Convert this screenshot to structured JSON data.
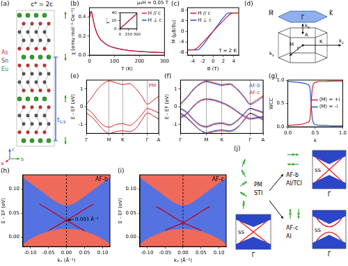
{
  "diagrams": {
    "crystal": {
      "panel_label": "(a)",
      "title": "c* = 2c",
      "atoms": [
        {
          "text": "As",
          "color": "#d62728"
        },
        {
          "text": "Sn",
          "color": "#555555"
        },
        {
          "text": "Eu",
          "color": "#2ca02c"
        }
      ],
      "spacing_label": {
        "text": "t",
        "sub": "1/2"
      },
      "axes": [
        "a",
        "b",
        "c"
      ]
    },
    "brillouin_zone": {
      "panel_label": "(d)",
      "surface_points": [
        "M̄",
        "Γ̄",
        "K̄"
      ],
      "bulk_points": [
        "A",
        "Γ",
        "M",
        "K"
      ],
      "axes": [
        {
          "text": "k",
          "sub": "z"
        },
        {
          "text": "k",
          "sub": "x"
        },
        {
          "text": "k",
          "sub": "y"
        }
      ]
    },
    "phase_scheme": {
      "panel_label": "(j)",
      "start": {
        "phase": "PM",
        "topology": "STI"
      },
      "branches": [
        {
          "phase": "AF-b",
          "topology": "AI/TCI"
        },
        {
          "phase": "AF-c",
          "topology": "AI"
        }
      ],
      "state_label": "SS",
      "point_label": "Γ̄"
    }
  },
  "chart_data": [
    {
      "panel_label": "(b)",
      "type": "line",
      "x_label": "T (K)",
      "y_label": "χ (emu·mol⁻¹·Oe⁻¹)",
      "annotation": "μ₀H = 0.05 T",
      "legend": "upper right",
      "xlim": [
        0,
        300
      ],
      "xticks": [
        0,
        100,
        200,
        300
      ],
      "ylim": [
        0,
        0.5
      ],
      "yticks": [
        {
          "value": 0,
          "label": "0.0"
        },
        0.2,
        0.4
      ],
      "x": [
        2,
        5,
        8,
        10,
        15,
        20,
        30,
        40,
        50,
        75,
        100,
        150,
        200,
        250,
        300
      ],
      "series": [
        {
          "name": "H // c",
          "color": "#e41a1c",
          "values": [
            0.4,
            0.44,
            0.45,
            0.44,
            0.37,
            0.31,
            0.23,
            0.18,
            0.15,
            0.1,
            0.078,
            0.052,
            0.039,
            0.031,
            0.026
          ]
        },
        {
          "name": "H ⊥ c",
          "color": "#1f4fd8",
          "values": [
            0.44,
            0.46,
            0.46,
            0.44,
            0.37,
            0.31,
            0.23,
            0.18,
            0.15,
            0.1,
            0.078,
            0.052,
            0.039,
            0.031,
            0.026
          ]
        }
      ],
      "inset": {
        "type": "line",
        "y_label": "χ⁻¹",
        "xlim": [
          0,
          300
        ],
        "xticks": [
          0,
          150,
          300
        ],
        "ylim": [
          0,
          40
        ],
        "yticks": [
          0,
          20,
          40
        ],
        "x": [
          5,
          50,
          100,
          150,
          200,
          250,
          300
        ],
        "series": [
          {
            "color": "#e41a1c",
            "values": [
              1.5,
              6.8,
              13,
              19.5,
              25.8,
              32,
              38.5
            ]
          },
          {
            "color": "#1f4fd8",
            "values": [
              1.4,
              6.6,
              12.8,
              19.2,
              25.5,
              31.8,
              38.2
            ]
          }
        ]
      }
    },
    {
      "panel_label": "(c)",
      "type": "line",
      "x_label": "B (T)",
      "y_label": "M (μB/Eu)",
      "annotation": "T = 2 K",
      "legend": "upper left",
      "xlim": [
        -5,
        5
      ],
      "xticks": [
        -4,
        -2,
        0,
        2,
        4
      ],
      "ylim": [
        -9,
        9
      ],
      "yticks": [
        -8,
        -4,
        0,
        4,
        8
      ],
      "x": [
        -5,
        -4,
        -3.5,
        -3,
        -2,
        -1,
        0,
        1,
        2,
        3,
        3.5,
        4,
        5
      ],
      "series": [
        {
          "name": "H // c",
          "color": "#e41a1c",
          "values": [
            -7,
            -7,
            -6.8,
            -6.1,
            -4.1,
            -2.1,
            0,
            2.1,
            4.1,
            6.1,
            6.8,
            7,
            7
          ]
        },
        {
          "name": "H ⊥ c",
          "color": "#1f4fd8",
          "values": [
            -7,
            -7,
            -7,
            -7,
            -5.2,
            -2.6,
            0,
            2.6,
            5.2,
            7,
            7,
            7,
            7
          ]
        }
      ]
    },
    {
      "panel_label": "(e)",
      "type": "band_structure",
      "y_label": "E - EF (eV)",
      "legend": "upper right",
      "grid": true,
      "xlim": [
        0,
        3.2
      ],
      "xticks": [
        {
          "value": 0,
          "label": "Γ"
        },
        {
          "value": 1,
          "label": "M"
        },
        {
          "value": 1.6,
          "label": "K"
        },
        {
          "value": 2.7,
          "label": "Γ"
        },
        {
          "value": 3.2,
          "label": "A"
        }
      ],
      "ylim": [
        -1.5,
        1.5
      ],
      "yticks": [
        -1,
        0,
        1
      ],
      "x": [
        0,
        0.25,
        0.5,
        0.75,
        1,
        1.3,
        1.6,
        1.9,
        2.2,
        2.45,
        2.7,
        2.95,
        3.2
      ],
      "series": [
        {
          "name": "PM",
          "color": "#d7191c",
          "bands": [
            [
              0.15,
              0.55,
              1.0,
              1.3,
              1.45,
              1.35,
              1.25,
              1.3,
              1.0,
              0.6,
              0.15,
              0.35,
              0.6
            ],
            [
              -0.1,
              -0.35,
              -0.75,
              -1.05,
              -1.15,
              -1.0,
              -0.95,
              -1.05,
              -0.8,
              -0.45,
              -0.1,
              -0.2,
              -0.35
            ],
            [
              -0.35,
              -0.6,
              -0.95,
              -1.3,
              -1.5,
              -1.4,
              -1.35,
              -1.4,
              -1.2,
              -0.75,
              -0.35,
              -0.5,
              -0.7
            ]
          ]
        }
      ]
    },
    {
      "panel_label": "(f)",
      "type": "band_structure",
      "y_label": "E - EF (eV)",
      "legend": "upper right",
      "grid": true,
      "xlim": [
        0,
        3.2
      ],
      "xticks": [
        {
          "value": 0,
          "label": "Γ"
        },
        {
          "value": 1,
          "label": "M"
        },
        {
          "value": 1.6,
          "label": "K"
        },
        {
          "value": 2.7,
          "label": "Γ"
        },
        {
          "value": 3.2,
          "label": "A"
        }
      ],
      "ylim": [
        -1.5,
        1.5
      ],
      "yticks": [
        -1,
        0,
        1
      ],
      "x": [
        0,
        0.25,
        0.5,
        0.75,
        1,
        1.3,
        1.6,
        1.9,
        2.2,
        2.45,
        2.7,
        2.95,
        3.2
      ],
      "series": [
        {
          "name": "AF-b",
          "color": "#1f4fd8",
          "bands": [
            [
              0.12,
              0.5,
              0.95,
              1.25,
              1.4,
              1.3,
              1.2,
              1.25,
              0.95,
              0.55,
              0.12,
              0.3,
              0.55
            ],
            [
              -0.08,
              -0.3,
              -0.7,
              -1.0,
              -1.1,
              -0.95,
              -0.9,
              -1.0,
              -0.75,
              -0.4,
              -0.08,
              -0.18,
              -0.3
            ],
            [
              -0.4,
              -0.65,
              -1.0,
              -1.3,
              -1.45,
              -1.35,
              -1.3,
              -1.35,
              -1.15,
              -0.8,
              -0.4,
              -0.55,
              -0.75
            ],
            [
              -0.6,
              -0.35,
              0.05,
              0.35,
              0.45,
              0.4,
              0.25,
              0.05,
              -0.25,
              -0.5,
              -0.65,
              -0.6,
              -0.55
            ]
          ]
        },
        {
          "name": "AF-c",
          "color": "#d7191c",
          "bands": [
            [
              0.18,
              0.55,
              1.0,
              1.3,
              1.45,
              1.35,
              1.25,
              1.3,
              1.0,
              0.6,
              0.18,
              0.38,
              0.62
            ],
            [
              -0.12,
              -0.35,
              -0.75,
              -1.05,
              -1.15,
              -1.0,
              -0.95,
              -1.05,
              -0.8,
              -0.45,
              -0.12,
              -0.22,
              -0.35
            ],
            [
              -0.35,
              -0.6,
              -0.95,
              -1.3,
              -1.5,
              -1.4,
              -1.35,
              -1.4,
              -1.2,
              -0.75,
              -0.35,
              -0.5,
              -0.7
            ],
            [
              -0.65,
              -0.4,
              0.0,
              0.3,
              0.4,
              0.35,
              0.2,
              0.0,
              -0.3,
              -0.55,
              -0.7,
              -0.65,
              -0.6
            ]
          ]
        }
      ]
    },
    {
      "panel_label": "(g)",
      "type": "line",
      "x_label": "k",
      "y_label": "WCC",
      "legend": "center right",
      "xlim": [
        0,
        1
      ],
      "xticks": [
        {
          "value": 0,
          "label": "0.0"
        },
        0.5,
        {
          "value": 1,
          "label": "1.0"
        }
      ],
      "ylim": [
        0,
        1
      ],
      "yticks": [
        {
          "value": 0,
          "label": "0.0"
        },
        0.5,
        {
          "value": 1,
          "label": "1.0"
        }
      ],
      "x": [
        0,
        0.1,
        0.2,
        0.3,
        0.35,
        0.4,
        0.45,
        0.5,
        0.6,
        0.7,
        0.8,
        0.9,
        1
      ],
      "series": [
        {
          "name": "⟨M⟩ = +i",
          "color": "#e41a1c",
          "values": [
            0.03,
            0.04,
            0.05,
            0.07,
            0.09,
            0.15,
            0.85,
            0.95,
            0.97,
            0.97,
            0.98,
            0.98,
            0.98
          ]
        },
        {
          "name": "⟨M⟩ = -i",
          "color": "#1f4fd8",
          "values": [
            0.97,
            0.96,
            0.95,
            0.93,
            0.91,
            0.85,
            0.15,
            0.05,
            0.03,
            0.03,
            0.02,
            0.02,
            0.02
          ]
        }
      ]
    },
    {
      "panel_label": "(h)",
      "type": "surface_spectrum",
      "title": "AF-b",
      "x_label": "kₓ (Å⁻¹)",
      "y_label": "E - EF (eV)",
      "annotation": "0.003 Å⁻¹",
      "vline": 0,
      "xlim": [
        -0.12,
        0.12
      ],
      "xticks": [
        {
          "value": -0.1,
          "label": "-0.10"
        },
        {
          "value": -0.05,
          "label": "-0.05"
        },
        {
          "value": 0,
          "label": "0.00"
        },
        {
          "value": 0.05,
          "label": "0.05"
        },
        {
          "value": 0.1,
          "label": "0.10"
        }
      ],
      "ylim": [
        -0.02,
        0.13
      ],
      "yticks": [
        {
          "value": 0,
          "label": "0.00"
        },
        {
          "value": 0.05,
          "label": "0.05"
        },
        {
          "value": 0.1,
          "label": "0.10"
        }
      ],
      "x": [
        -0.12,
        -0.1,
        -0.075,
        -0.05,
        -0.025,
        0,
        0.025,
        0.05,
        0.075,
        0.1,
        0.12
      ],
      "series": [
        {
          "type": "area_above",
          "color": "#ef6a5a",
          "values": [
            0.125,
            0.113,
            0.099,
            0.085,
            0.072,
            0.066,
            0.072,
            0.085,
            0.099,
            0.113,
            0.125
          ]
        },
        {
          "type": "area_below",
          "color": "#ef6a5a",
          "values": [
            -0.015,
            -0.004,
            0.005,
            0.012,
            0.016,
            0.017,
            0.016,
            0.012,
            0.005,
            -0.004,
            -0.015
          ]
        },
        {
          "type": "line",
          "color": "#c4001c",
          "values": [
            null,
            null,
            null,
            0.013,
            0.024,
            0.035,
            0.046,
            0.058,
            0.069,
            null,
            null
          ]
        },
        {
          "type": "line",
          "color": "#c4001c",
          "values": [
            null,
            null,
            0.069,
            0.058,
            0.046,
            0.035,
            0.024,
            0.013,
            null,
            null,
            null
          ]
        }
      ]
    },
    {
      "panel_label": "(i)",
      "type": "surface_spectrum",
      "title": "AF-c",
      "x_label": "kₓ (Å⁻¹)",
      "y_label": "E - EF (eV)",
      "vline": 0,
      "xlim": [
        -0.12,
        0.12
      ],
      "xticks": [
        {
          "value": -0.1,
          "label": "-0.10"
        },
        {
          "value": -0.05,
          "label": "-0.05"
        },
        {
          "value": 0,
          "label": "0.00"
        },
        {
          "value": 0.05,
          "label": "0.05"
        },
        {
          "value": 0.1,
          "label": "0.10"
        }
      ],
      "ylim": [
        -0.02,
        0.13
      ],
      "yticks": [
        {
          "value": 0,
          "label": "0.00"
        },
        {
          "value": 0.05,
          "label": "0.05"
        },
        {
          "value": 0.1,
          "label": "0.10"
        }
      ],
      "x": [
        -0.12,
        -0.1,
        -0.075,
        -0.05,
        -0.025,
        0,
        0.025,
        0.05,
        0.075,
        0.1,
        0.12
      ],
      "series": [
        {
          "type": "area_above",
          "color": "#ef6a5a",
          "values": [
            0.125,
            0.113,
            0.099,
            0.085,
            0.072,
            0.066,
            0.072,
            0.085,
            0.099,
            0.113,
            0.125
          ]
        },
        {
          "type": "area_below",
          "color": "#ef6a5a",
          "values": [
            -0.015,
            -0.004,
            0.005,
            0.012,
            0.016,
            0.017,
            0.016,
            0.012,
            0.005,
            -0.004,
            -0.015
          ]
        },
        {
          "type": "line",
          "color": "#c4001c",
          "values": [
            null,
            null,
            null,
            0.014,
            0.022,
            0.03,
            0.041,
            0.053,
            0.064,
            null,
            null
          ]
        },
        {
          "type": "line",
          "color": "#c4001c",
          "values": [
            null,
            null,
            0.064,
            0.053,
            0.041,
            0.03,
            0.022,
            0.014,
            null,
            null,
            null
          ]
        }
      ]
    }
  ]
}
